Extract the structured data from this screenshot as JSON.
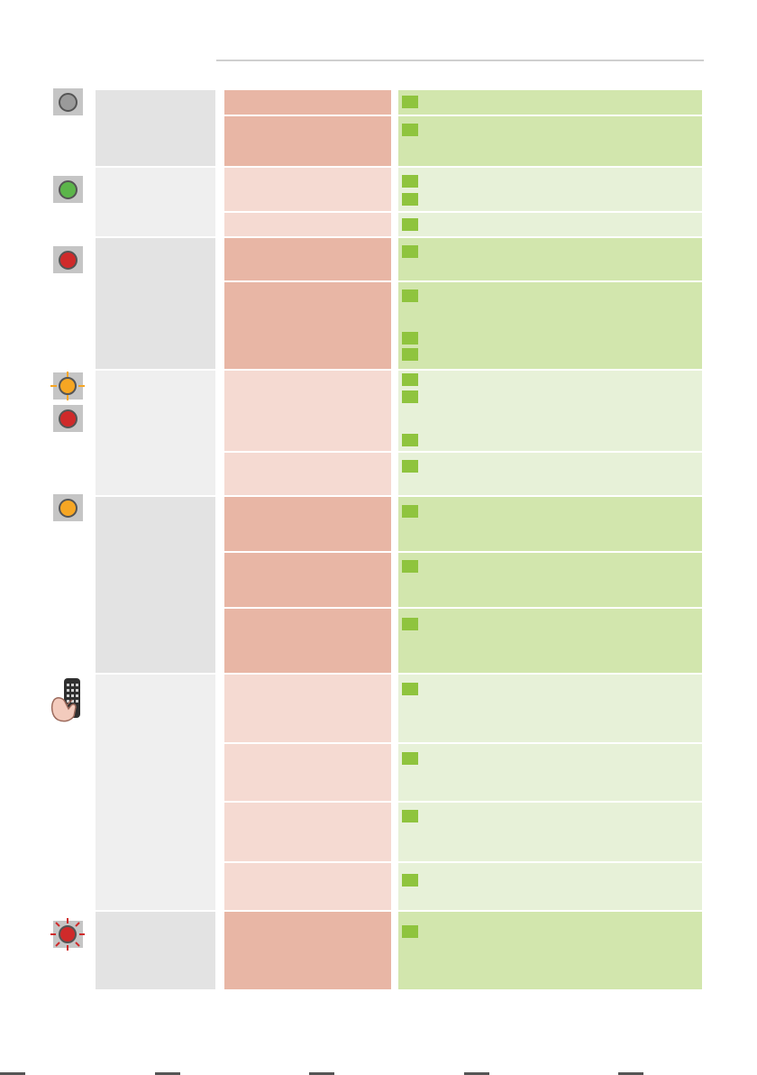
{
  "document": {
    "colors": {
      "col_a_dark": "#e3e3e3",
      "col_a_light": "#efefef",
      "col_b_dark": "#e8b6a5",
      "col_b_light": "#f5dad2",
      "col_c_dark": "#d2e6ad",
      "col_c_light": "#e7f1d8",
      "check_square": "#8fc43e",
      "led_grey": "#9a9a9a",
      "led_green": "#5cb54a",
      "led_red": "#cf2a2a",
      "led_orange": "#f6a623",
      "icon_cell": "#c5c5c5"
    },
    "groups": [
      {
        "icon": "led-grey-icon"
      },
      {
        "icon": "led-green-icon"
      },
      {
        "icon": "led-red-icon"
      },
      {
        "icon": "led-orange-blinking-and-red-icon"
      },
      {
        "icon": "led-orange-icon"
      },
      {
        "icon": "remote-control-hand-icon"
      },
      {
        "icon": "led-red-blinking-icon"
      }
    ]
  }
}
